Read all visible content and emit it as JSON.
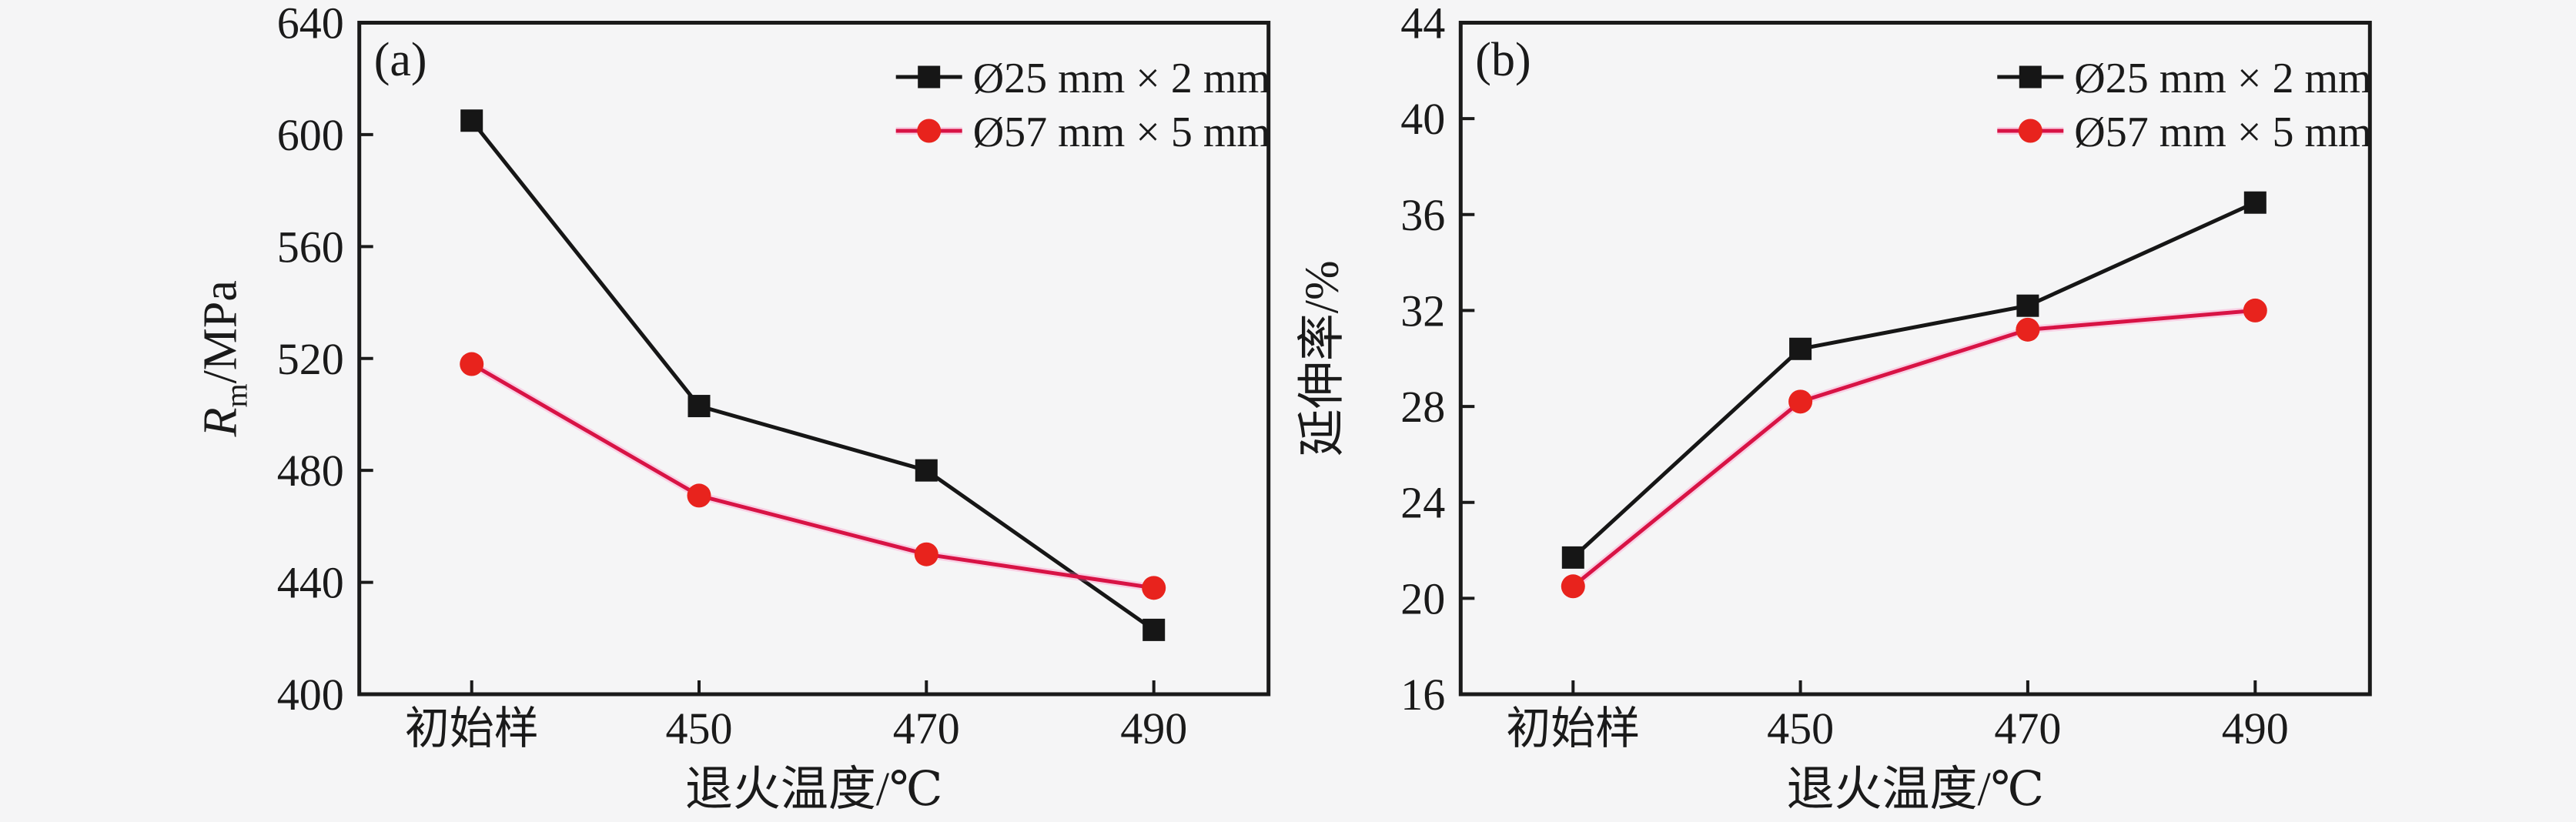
{
  "figure": {
    "background": "#f5f5f6",
    "text_color": "#1a1a1a"
  },
  "chart_data": [
    {
      "type": "line",
      "panel_label": "(a)",
      "categories": [
        "初始样",
        "450",
        "470",
        "490"
      ],
      "xlabel": "退火温度/℃",
      "ylabel": "Rm/MPa",
      "ylabel_parts": {
        "pre": "R",
        "sub": "m",
        "post": "/MPa"
      },
      "ylim": [
        400,
        640
      ],
      "ytick_values": [
        640,
        600,
        560,
        520,
        480,
        440,
        400
      ],
      "grid": false,
      "legend_position": "top-right-inside",
      "series": [
        {
          "name": "Ø25 mm × 2 mm",
          "marker": "square",
          "line_color": "#161616",
          "marker_color": "#161616",
          "values": [
            605,
            503,
            480,
            423
          ]
        },
        {
          "name": "Ø57 mm × 5 mm",
          "marker": "circle",
          "line_color": "#d81345",
          "marker_color": "#e8231d",
          "values": [
            518,
            471,
            450,
            438
          ]
        }
      ]
    },
    {
      "type": "line",
      "panel_label": "(b)",
      "categories": [
        "初始样",
        "450",
        "470",
        "490"
      ],
      "xlabel": "退火温度/℃",
      "ylabel": "延伸率/%",
      "ylabel_parts": {
        "pre": "延伸率",
        "sub": "",
        "post": "/%"
      },
      "ylim": [
        16,
        44
      ],
      "ytick_values": [
        44,
        40,
        36,
        32,
        28,
        24,
        20,
        16
      ],
      "grid": false,
      "legend_position": "top-right-inside",
      "series": [
        {
          "name": "Ø25 mm × 2 mm",
          "marker": "square",
          "line_color": "#161616",
          "marker_color": "#161616",
          "values": [
            21.7,
            30.4,
            32.2,
            36.5
          ]
        },
        {
          "name": "Ø57 mm × 5 mm",
          "marker": "circle",
          "line_color": "#d81345",
          "marker_color": "#e8231d",
          "values": [
            20.5,
            28.2,
            31.2,
            32.0
          ]
        }
      ]
    }
  ]
}
